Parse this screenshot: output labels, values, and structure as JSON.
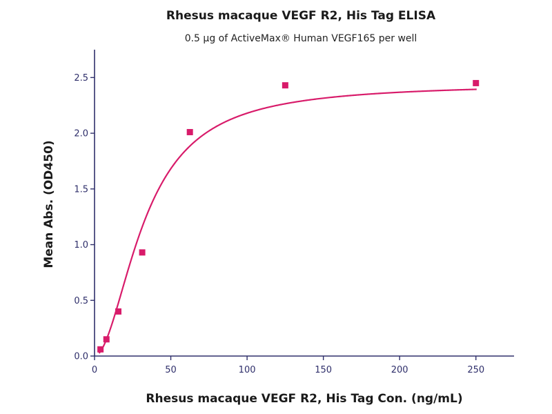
{
  "chart_data": {
    "type": "scatter",
    "title": "Rhesus macaque VEGF R2, His Tag ELISA",
    "subtitle": "0.5 µg of ActiveMax® Human VEGF165 per well",
    "xlabel": "Rhesus macaque VEGF R2, His Tag Con. (ng/mL)",
    "ylabel": "Mean Abs. (OD450)",
    "xlim": [
      0,
      275
    ],
    "ylim": [
      0,
      2.75
    ],
    "x_ticks": [
      "0",
      "50",
      "100",
      "150",
      "200",
      "250"
    ],
    "y_ticks": [
      "0.0",
      "0.5",
      "1.0",
      "1.5",
      "2.0",
      "2.5"
    ],
    "x_tick_values": [
      0,
      50,
      100,
      150,
      200,
      250
    ],
    "y_tick_values": [
      0,
      0.5,
      1.0,
      1.5,
      2.0,
      2.5
    ],
    "grid": false,
    "series": [
      {
        "points": [
          {
            "x": 3.9,
            "y": 0.06
          },
          {
            "x": 7.8,
            "y": 0.15
          },
          {
            "x": 15.6,
            "y": 0.4
          },
          {
            "x": 31.25,
            "y": 0.93
          },
          {
            "x": 62.5,
            "y": 2.01
          },
          {
            "x": 125,
            "y": 2.43
          },
          {
            "x": 250,
            "y": 2.45
          }
        ],
        "color": "#d81b6a",
        "fit": "4-parameter logistic curve"
      }
    ]
  }
}
